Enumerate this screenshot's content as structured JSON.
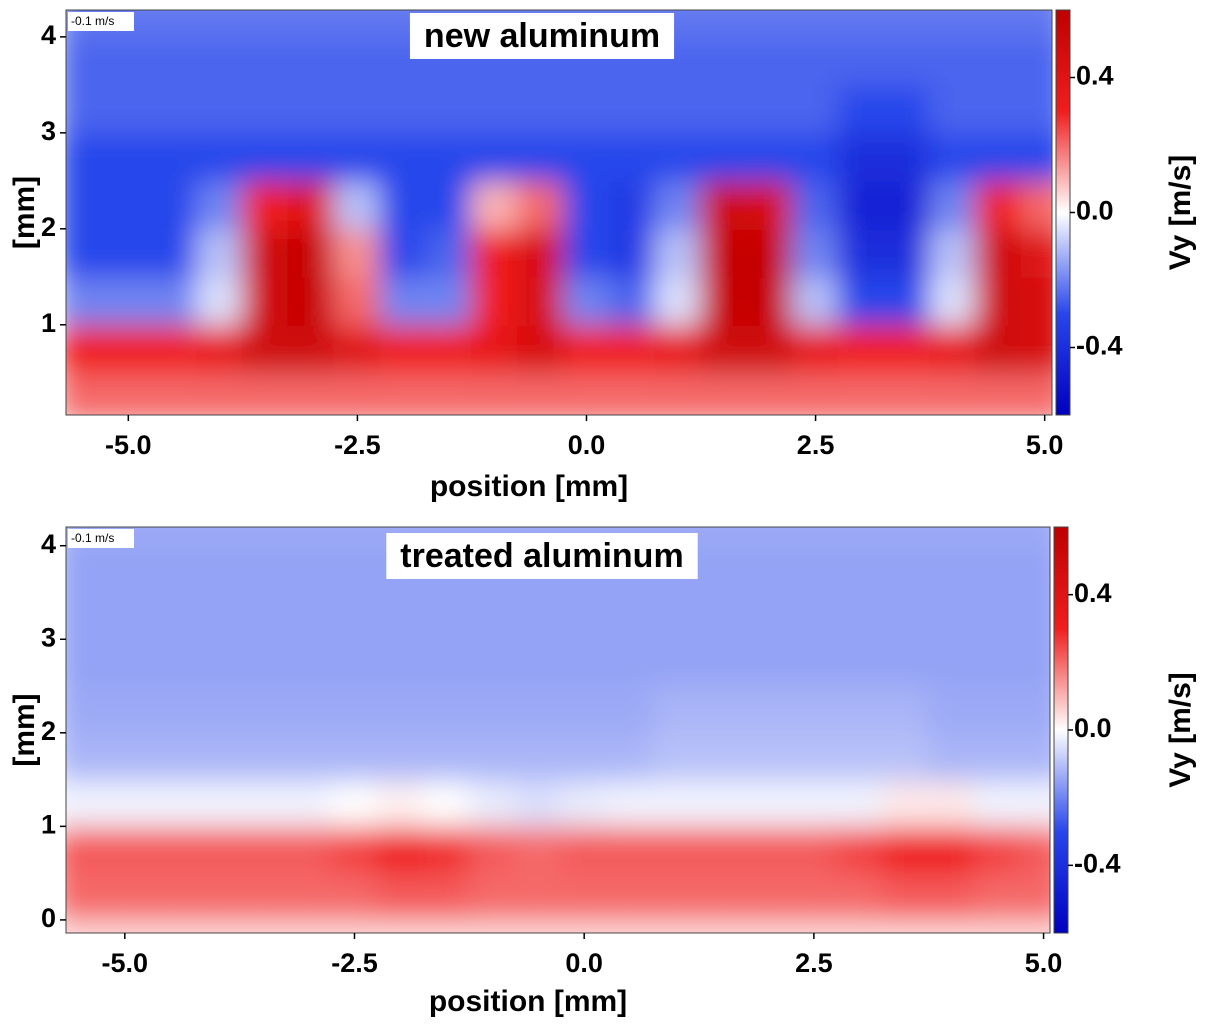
{
  "chart_data": [
    {
      "type": "heatmap",
      "title": "new aluminum",
      "xlabel": "position [mm]",
      "ylabel": "[mm]",
      "colorbar_label": "Vy [m/s]",
      "scale_label": "-0.1 m/s",
      "x": [
        -5.5,
        -5,
        -4.5,
        -4,
        -3.5,
        -3,
        -2.5,
        -2,
        -1.5,
        -1,
        -0.5,
        0,
        0.5,
        1,
        1.5,
        2,
        2.5,
        3,
        3.5,
        4,
        4.5,
        5
      ],
      "y": [
        0.25,
        0.75,
        1.25,
        1.75,
        2.25,
        2.75,
        3.25,
        3.75,
        4.25
      ],
      "z": [
        [
          0.2,
          0.2,
          0.2,
          0.2,
          0.2,
          0.2,
          0.2,
          0.2,
          0.2,
          0.2,
          0.2,
          0.2,
          0.2,
          0.2,
          0.2,
          0.2,
          0.2,
          0.2,
          0.2,
          0.2,
          0.2,
          0.2
        ],
        [
          0.3,
          0.3,
          0.3,
          0.35,
          0.5,
          0.5,
          0.4,
          0.3,
          0.3,
          0.35,
          0.45,
          0.3,
          0.3,
          0.35,
          0.5,
          0.5,
          0.35,
          0.3,
          0.3,
          0.35,
          0.5,
          0.45
        ],
        [
          -0.2,
          -0.2,
          -0.2,
          -0.05,
          0.5,
          0.55,
          0.2,
          -0.2,
          -0.2,
          0.3,
          0.45,
          -0.2,
          -0.25,
          -0.05,
          0.55,
          0.55,
          -0.1,
          -0.3,
          -0.3,
          -0.05,
          0.5,
          0.45
        ],
        [
          -0.3,
          -0.3,
          -0.3,
          -0.1,
          0.5,
          0.55,
          0.15,
          -0.3,
          -0.25,
          0.3,
          0.45,
          -0.3,
          -0.35,
          -0.1,
          0.55,
          0.55,
          -0.2,
          -0.4,
          -0.4,
          -0.1,
          0.5,
          0.4
        ],
        [
          -0.3,
          -0.3,
          -0.3,
          -0.2,
          0.3,
          0.4,
          -0.1,
          -0.3,
          -0.3,
          0.1,
          0.2,
          -0.3,
          -0.35,
          -0.2,
          0.5,
          0.45,
          -0.25,
          -0.45,
          -0.45,
          -0.2,
          0.3,
          0.2
        ],
        [
          -0.3,
          -0.3,
          -0.3,
          -0.3,
          -0.3,
          -0.3,
          -0.3,
          -0.3,
          -0.3,
          -0.3,
          -0.3,
          -0.3,
          -0.3,
          -0.3,
          -0.3,
          -0.3,
          -0.3,
          -0.4,
          -0.4,
          -0.3,
          -0.3,
          -0.3
        ],
        [
          -0.25,
          -0.25,
          -0.25,
          -0.25,
          -0.25,
          -0.25,
          -0.25,
          -0.25,
          -0.25,
          -0.25,
          -0.25,
          -0.25,
          -0.25,
          -0.25,
          -0.25,
          -0.25,
          -0.25,
          -0.3,
          -0.3,
          -0.25,
          -0.25,
          -0.25
        ],
        [
          -0.25,
          -0.25,
          -0.25,
          -0.25,
          -0.25,
          -0.25,
          -0.25,
          -0.25,
          -0.25,
          -0.25,
          -0.25,
          -0.25,
          -0.25,
          -0.25,
          -0.25,
          -0.25,
          -0.25,
          -0.25,
          -0.25,
          -0.25,
          -0.25,
          -0.25
        ],
        [
          -0.22,
          -0.22,
          -0.22,
          -0.22,
          -0.22,
          -0.22,
          -0.22,
          -0.22,
          -0.22,
          -0.22,
          -0.22,
          -0.22,
          -0.22,
          -0.22,
          -0.22,
          -0.22,
          -0.22,
          -0.22,
          -0.22,
          -0.22,
          -0.22,
          -0.22
        ]
      ],
      "xlim": [
        -5.68,
        5.08
      ],
      "ylim": [
        0.06,
        4.28
      ],
      "clim": [
        -0.6,
        0.6
      ],
      "xticks": [
        {
          "value": -5,
          "label": "-5.0"
        },
        -2.5,
        {
          "value": 0,
          "label": "0.0"
        },
        2.5,
        {
          "value": 5,
          "label": "5.0"
        }
      ],
      "yticks": [
        1,
        2,
        3,
        4
      ],
      "cticks": [
        0.4,
        {
          "value": 0,
          "label": "0.0"
        },
        -0.4
      ]
    },
    {
      "type": "heatmap",
      "title": "treated aluminum",
      "xlabel": "position [mm]",
      "ylabel": "[mm]",
      "colorbar_label": "Vy [m/s]",
      "scale_label": "-0.1 m/s",
      "x": [
        -5.5,
        -5,
        -4.5,
        -4,
        -3.5,
        -3,
        -2.5,
        -2,
        -1.5,
        -1,
        -0.5,
        0,
        0.5,
        1,
        1.5,
        2,
        2.5,
        3,
        3.5,
        4,
        4.5,
        5
      ],
      "y": [
        -0.25,
        0.25,
        0.75,
        1.25,
        1.75,
        2.25,
        2.75,
        3.25,
        3.75,
        4.25
      ],
      "z": [
        [
          0.05,
          0.05,
          0.05,
          0.05,
          0.05,
          0.05,
          0.05,
          0.05,
          0.05,
          0.05,
          0.05,
          0.05,
          0.05,
          0.05,
          0.05,
          0.05,
          0.05,
          0.05,
          0.05,
          0.05,
          0.05,
          0.05
        ],
        [
          0.2,
          0.2,
          0.2,
          0.2,
          0.2,
          0.2,
          0.2,
          0.22,
          0.22,
          0.2,
          0.2,
          0.2,
          0.2,
          0.2,
          0.2,
          0.2,
          0.2,
          0.2,
          0.22,
          0.22,
          0.2,
          0.2
        ],
        [
          0.22,
          0.22,
          0.22,
          0.22,
          0.22,
          0.22,
          0.25,
          0.3,
          0.28,
          0.22,
          0.2,
          0.22,
          0.22,
          0.22,
          0.22,
          0.22,
          0.22,
          0.25,
          0.3,
          0.3,
          0.25,
          0.22
        ],
        [
          -0.02,
          -0.02,
          -0.02,
          -0.02,
          -0.02,
          -0.02,
          0,
          0.02,
          0,
          -0.03,
          -0.05,
          -0.03,
          -0.02,
          -0.02,
          -0.02,
          -0.02,
          -0.02,
          -0.02,
          0.03,
          0.03,
          -0.02,
          -0.02
        ],
        [
          -0.12,
          -0.12,
          -0.12,
          -0.12,
          -0.12,
          -0.12,
          -0.12,
          -0.12,
          -0.12,
          -0.12,
          -0.12,
          -0.12,
          -0.12,
          -0.1,
          -0.1,
          -0.1,
          -0.1,
          -0.1,
          -0.1,
          -0.12,
          -0.12,
          -0.12
        ],
        [
          -0.14,
          -0.14,
          -0.14,
          -0.14,
          -0.14,
          -0.14,
          -0.14,
          -0.14,
          -0.14,
          -0.14,
          -0.14,
          -0.14,
          -0.14,
          -0.12,
          -0.12,
          -0.12,
          -0.12,
          -0.12,
          -0.12,
          -0.14,
          -0.14,
          -0.14
        ],
        [
          -0.15,
          -0.15,
          -0.15,
          -0.15,
          -0.15,
          -0.15,
          -0.15,
          -0.15,
          -0.15,
          -0.15,
          -0.15,
          -0.15,
          -0.15,
          -0.15,
          -0.15,
          -0.15,
          -0.15,
          -0.15,
          -0.15,
          -0.15,
          -0.15,
          -0.15
        ],
        [
          -0.15,
          -0.15,
          -0.15,
          -0.15,
          -0.15,
          -0.15,
          -0.15,
          -0.15,
          -0.15,
          -0.15,
          -0.15,
          -0.15,
          -0.15,
          -0.15,
          -0.15,
          -0.15,
          -0.15,
          -0.15,
          -0.15,
          -0.15,
          -0.15,
          -0.15
        ],
        [
          -0.15,
          -0.15,
          -0.15,
          -0.15,
          -0.15,
          -0.15,
          -0.15,
          -0.15,
          -0.15,
          -0.15,
          -0.15,
          -0.15,
          -0.15,
          -0.15,
          -0.15,
          -0.15,
          -0.15,
          -0.15,
          -0.15,
          -0.15,
          -0.15,
          -0.15
        ],
        [
          -0.14,
          -0.14,
          -0.14,
          -0.14,
          -0.14,
          -0.14,
          -0.14,
          -0.14,
          -0.14,
          -0.14,
          -0.14,
          -0.14,
          -0.14,
          -0.14,
          -0.14,
          -0.14,
          -0.14,
          -0.14,
          -0.14,
          -0.14,
          -0.14,
          -0.14
        ]
      ],
      "xlim": [
        -5.64,
        5.07
      ],
      "ylim": [
        -0.14,
        4.2
      ],
      "clim": [
        -0.6,
        0.6
      ],
      "xticks": [
        {
          "value": -5,
          "label": "-5.0"
        },
        -2.5,
        {
          "value": 0,
          "label": "0.0"
        },
        2.5,
        {
          "value": 5,
          "label": "5.0"
        }
      ],
      "yticks": [
        0,
        1,
        2,
        3,
        4
      ],
      "cticks": [
        0.4,
        {
          "value": 0,
          "label": "0.0"
        },
        -0.4
      ]
    }
  ]
}
